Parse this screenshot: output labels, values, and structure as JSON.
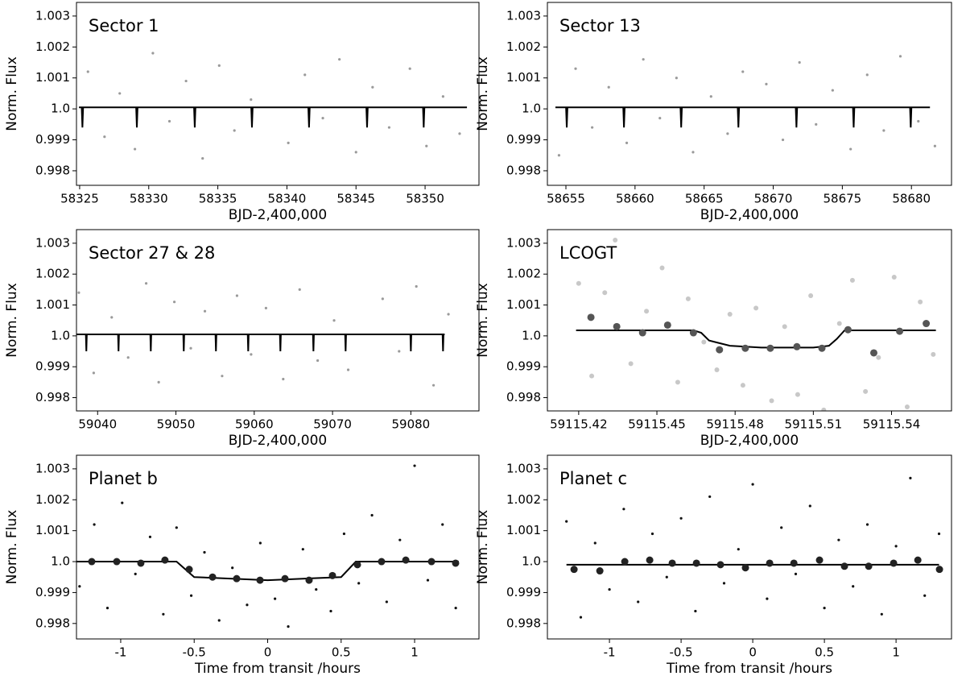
{
  "chart_data": [
    {
      "type": "scatter",
      "title": "Sector 1",
      "xlabel": "BJD-2,400,000",
      "ylabel": "Norm. Flux",
      "xlim": [
        58324.77,
        58353.9
      ],
      "xticks": [
        58325,
        58330,
        58335,
        58340,
        58345,
        58350
      ],
      "ylim": [
        0.99753,
        1.00344
      ],
      "yticks": [
        0.998,
        0.999,
        {
          "value": 1,
          "label": "1.0"
        },
        1.001,
        1.002,
        1.003
      ],
      "raw": {
        "color": "#9a9a9a",
        "x": [
          58325.6,
          58326.8,
          58327.9,
          58329.0,
          58330.3,
          58331.5,
          58332.7,
          58333.9,
          58335.1,
          58336.2,
          58337.4,
          58340.1,
          58341.3,
          58342.6,
          58343.8,
          58345.0,
          58346.2,
          58347.4,
          58348.9,
          58350.1,
          58351.3,
          58352.5
        ],
        "y": [
          1.0012,
          0.9991,
          1.0005,
          0.9987,
          1.0018,
          0.9996,
          1.0009,
          0.9984,
          1.0014,
          0.9993,
          1.0003,
          0.9989,
          1.0011,
          0.9997,
          1.0016,
          0.9986,
          1.0007,
          0.9994,
          1.0013,
          0.9988,
          1.0004,
          0.9992
        ]
      },
      "model": {
        "color": "#000000",
        "x": [
          58324.95,
          58325.15,
          58325.2,
          58325.25,
          58329.09,
          58329.14,
          58329.19,
          58333.28,
          58333.33,
          58333.38,
          58337.42,
          58337.47,
          58337.52,
          58341.55,
          58341.6,
          58341.65,
          58345.75,
          58345.8,
          58345.85,
          58349.85,
          58349.9,
          58349.95,
          58353.03
        ],
        "y": [
          1.00005,
          1.00005,
          0.9994,
          1.00005,
          1.00005,
          0.9994,
          1.00005,
          1.00005,
          0.9994,
          1.00005,
          1.00005,
          0.9994,
          1.00005,
          1.00005,
          0.9994,
          1.00005,
          1.00005,
          0.9994,
          1.00005,
          1.00005,
          0.9994,
          1.00005,
          1.00005
        ]
      }
    },
    {
      "type": "scatter",
      "title": "Sector 13",
      "xlabel": "BJD-2,400,000",
      "ylabel": "Norm. Flux",
      "xlim": [
        58653.66,
        58682.9
      ],
      "xticks": [
        58655,
        58660,
        58665,
        58670,
        58675,
        58680
      ],
      "ylim": [
        0.99753,
        1.00344
      ],
      "yticks": [
        0.998,
        0.999,
        {
          "value": 1,
          "label": "1.0"
        },
        1.001,
        1.002,
        1.003
      ],
      "raw": {
        "color": "#9a9a9a",
        "x": [
          58654.5,
          58655.7,
          58656.9,
          58658.1,
          58659.4,
          58660.6,
          58661.8,
          58663.0,
          58664.2,
          58665.5,
          58666.7,
          58667.8,
          58669.5,
          58670.7,
          58671.9,
          58673.1,
          58674.3,
          58675.6,
          58676.8,
          58678.0,
          58679.2,
          58680.5,
          58681.7
        ],
        "y": [
          0.9985,
          1.0013,
          0.9994,
          1.0007,
          0.9989,
          1.0016,
          0.9997,
          1.001,
          0.9986,
          1.0004,
          0.9992,
          1.0012,
          1.0008,
          0.999,
          1.0015,
          0.9995,
          1.0006,
          0.9987,
          1.0011,
          0.9993,
          1.0017,
          0.9996,
          0.9988
        ]
      },
      "model": {
        "color": "#000000",
        "x": [
          58654.24,
          58655.01,
          58655.06,
          58655.11,
          58659.15,
          58659.2,
          58659.25,
          58663.29,
          58663.34,
          58663.39,
          58667.43,
          58667.48,
          58667.53,
          58671.63,
          58671.68,
          58671.73,
          58675.77,
          58675.82,
          58675.87,
          58679.9,
          58679.95,
          58680.0,
          58681.34
        ],
        "y": [
          1.00005,
          1.00005,
          0.9994,
          1.00005,
          1.00005,
          0.9994,
          1.00005,
          1.00005,
          0.9994,
          1.00005,
          1.00005,
          0.9994,
          1.00005,
          1.00005,
          0.9994,
          1.00005,
          1.00005,
          0.9994,
          1.00005,
          1.00005,
          0.9994,
          1.00005,
          1.00005
        ]
      }
    },
    {
      "type": "scatter",
      "title": "Sector 27 & 28",
      "xlabel": "BJD-2,400,000",
      "ylabel": "Norm. Flux",
      "xlim": [
        59037.3,
        59088.7
      ],
      "xticks": [
        59040,
        59050,
        59060,
        59070,
        59080
      ],
      "ylim": [
        0.99757,
        1.00344
      ],
      "yticks": [
        0.998,
        0.999,
        {
          "value": 1,
          "label": "1.0"
        },
        1.001,
        1.002,
        1.003
      ],
      "raw": {
        "color": "#9a9a9a",
        "x": [
          59037.6,
          59039.5,
          59041.8,
          59043.9,
          59046.2,
          59047.8,
          59049.8,
          59051.9,
          59053.7,
          59055.9,
          59057.8,
          59059.6,
          59061.5,
          59063.7,
          59065.8,
          59068.1,
          59070.2,
          59072.0,
          59076.4,
          59078.5,
          59080.7,
          59082.9,
          59084.8
        ],
        "y": [
          1.0014,
          0.9988,
          1.0006,
          0.9993,
          1.0017,
          0.9985,
          1.0011,
          0.9996,
          1.0008,
          0.9987,
          1.0013,
          0.9994,
          1.0009,
          0.9986,
          1.0015,
          0.9992,
          1.0005,
          0.9989,
          1.0012,
          0.9995,
          1.0016,
          0.9984,
          1.0007
        ]
      },
      "model": {
        "color": "#000000",
        "x": [
          59037.33,
          59038.5,
          59038.56,
          59038.62,
          59042.61,
          59042.67,
          59042.73,
          59046.73,
          59046.79,
          59046.85,
          59050.94,
          59051.0,
          59051.06,
          59055.05,
          59055.11,
          59055.17,
          59059.17,
          59059.23,
          59059.29,
          59063.28,
          59063.34,
          59063.4,
          59067.5,
          59067.56,
          59067.62,
          59071.61,
          59071.67,
          59071.73,
          59079.94,
          59080.0,
          59080.06,
          59084.05,
          59084.11,
          59084.17,
          59084.32
        ],
        "y": [
          1.00005,
          1.00005,
          0.9995,
          1.00005,
          1.00005,
          0.9995,
          1.00005,
          1.00005,
          0.9995,
          1.00005,
          1.00005,
          0.9995,
          1.00005,
          1.00005,
          0.9995,
          1.00005,
          1.00005,
          0.9995,
          1.00005,
          1.00005,
          0.9995,
          1.00005,
          1.00005,
          0.9995,
          1.00005,
          1.00005,
          0.9995,
          1.00005,
          1.00005,
          0.9995,
          1.00005,
          1.00005,
          0.9995,
          1.00005,
          1.00005
        ]
      }
    },
    {
      "type": "scatter",
      "title": "LCOGT",
      "xlabel": "BJD-2,400,000",
      "ylabel": "Norm. Flux",
      "xlim": [
        59115.408,
        59115.563
      ],
      "xticks": [
        59115.42,
        59115.45,
        59115.48,
        59115.51,
        59115.54
      ],
      "ylim": [
        0.99757,
        1.00344
      ],
      "yticks": [
        0.998,
        0.999,
        {
          "value": 1,
          "label": "1.0"
        },
        1.001,
        1.002,
        1.003
      ],
      "raw": {
        "color": "#c8c8c8",
        "x": [
          59115.42,
          59115.425,
          59115.43,
          59115.434,
          59115.44,
          59115.446,
          59115.452,
          59115.458,
          59115.462,
          59115.468,
          59115.473,
          59115.478,
          59115.483,
          59115.488,
          59115.494,
          59115.499,
          59115.504,
          59115.509,
          59115.514,
          59115.52,
          59115.525,
          59115.53,
          59115.535,
          59115.541,
          59115.546,
          59115.551,
          59115.556
        ],
        "y": [
          1.0017,
          0.9987,
          1.0014,
          1.0031,
          0.9991,
          1.0008,
          1.0022,
          0.9985,
          1.0012,
          0.9998,
          0.9989,
          1.0007,
          0.9984,
          1.0009,
          0.9979,
          1.0003,
          0.9981,
          1.0013,
          0.9976,
          1.0004,
          1.0018,
          0.9982,
          0.9993,
          1.0019,
          0.9977,
          1.0011,
          0.9994
        ]
      },
      "binned": {
        "color": "#555555",
        "x": [
          59115.4247,
          59115.4346,
          59115.4445,
          59115.4541,
          59115.464,
          59115.474,
          59115.4839,
          59115.4935,
          59115.5037,
          59115.5133,
          59115.5233,
          59115.5332,
          59115.5431,
          59115.5533
        ],
        "y": [
          1.0006,
          1.0003,
          1.0001,
          1.00035,
          1.0001,
          0.99955,
          0.9996,
          0.9996,
          0.99965,
          0.9996,
          1.0002,
          0.99945,
          1.00015,
          1.0004
        ]
      },
      "model": {
        "color": "#000000",
        "x": [
          59115.419,
          59115.464,
          59115.467,
          59115.47,
          59115.478,
          59115.49,
          59115.51,
          59115.516,
          59115.519,
          59115.522,
          59115.557
        ],
        "y": [
          1.00018,
          1.00018,
          1.0001,
          0.99985,
          0.99968,
          0.99962,
          0.99962,
          0.99968,
          0.9999,
          1.00018,
          1.00018
        ]
      }
    },
    {
      "type": "scatter",
      "title": "Planet b",
      "xlabel": "Time from transit /hours",
      "ylabel": "Norm. Flux",
      "xlim": [
        -1.301,
        1.438
      ],
      "xticks": [
        -1,
        -0.5,
        0,
        0.5,
        1
      ],
      "ylim": [
        0.9975,
        1.00344
      ],
      "yticks": [
        0.998,
        0.999,
        {
          "value": 1,
          "label": "1.0"
        },
        1.001,
        1.002,
        1.003
      ],
      "raw": {
        "color": "#111111",
        "x": [
          -1.28,
          -1.18,
          -1.09,
          -0.99,
          -0.9,
          -0.8,
          -0.71,
          -0.62,
          -0.52,
          -0.43,
          -0.33,
          -0.24,
          -0.14,
          -0.05,
          0.05,
          0.14,
          0.24,
          0.33,
          0.43,
          0.52,
          0.62,
          0.71,
          0.81,
          0.9,
          1.0,
          1.09,
          1.19,
          1.28
        ],
        "y": [
          0.9992,
          1.0012,
          0.9985,
          1.0019,
          0.9996,
          1.0008,
          0.9983,
          1.0011,
          0.9989,
          1.0003,
          0.9981,
          0.9998,
          0.9986,
          1.0006,
          0.9988,
          0.9979,
          1.0004,
          0.9991,
          0.9984,
          1.0009,
          0.9993,
          1.0015,
          0.9987,
          1.0007,
          1.0031,
          0.9994,
          1.0012,
          0.9985
        ]
      },
      "binned": {
        "color": "#222222",
        "x": [
          -1.197,
          -1.027,
          -0.863,
          -0.699,
          -0.534,
          -0.375,
          -0.211,
          -0.052,
          0.118,
          0.282,
          0.441,
          0.611,
          0.775,
          0.94,
          1.115,
          1.279
        ],
        "y": [
          1.0,
          1.0,
          0.99995,
          1.00005,
          0.99975,
          0.9995,
          0.99945,
          0.9994,
          0.99945,
          0.9994,
          0.99955,
          0.9999,
          1.0,
          1.00005,
          1.0,
          0.99995
        ]
      },
      "model": {
        "color": "#000000",
        "x": [
          -1.3,
          -0.62,
          -0.5,
          0,
          0.5,
          0.6,
          1.3
        ],
        "y": [
          1.0,
          1.0,
          0.9995,
          0.9994,
          0.9995,
          1.0,
          1.0
        ]
      }
    },
    {
      "type": "scatter",
      "title": "Planet c",
      "xlabel": "Time from transit /hours",
      "ylabel": "Norm. Flux",
      "xlim": [
        -1.433,
        1.387
      ],
      "xticks": [
        -1,
        -0.5,
        0,
        0.5,
        1
      ],
      "ylim": [
        0.9975,
        1.00344
      ],
      "yticks": [
        0.998,
        0.999,
        {
          "value": 1,
          "label": "1.0"
        },
        1.001,
        1.002,
        1.003
      ],
      "raw": {
        "color": "#111111",
        "x": [
          -1.3,
          -1.2,
          -1.1,
          -1.0,
          -0.9,
          -0.8,
          -0.7,
          -0.6,
          -0.5,
          -0.4,
          -0.3,
          -0.2,
          -0.1,
          0.0,
          0.1,
          0.2,
          0.3,
          0.4,
          0.5,
          0.6,
          0.7,
          0.8,
          0.9,
          1.0,
          1.1,
          1.2,
          1.3
        ],
        "y": [
          1.0013,
          0.9982,
          1.0006,
          0.9991,
          1.0017,
          0.9987,
          1.0009,
          0.9995,
          1.0014,
          0.9984,
          1.0021,
          0.9993,
          1.0004,
          1.0025,
          0.9988,
          1.0011,
          0.9996,
          1.0018,
          0.9985,
          1.0007,
          0.9992,
          1.0012,
          0.9983,
          1.0005,
          1.0027,
          0.9989,
          1.0009
        ]
      },
      "binned": {
        "color": "#222222",
        "x": [
          -1.247,
          -1.067,
          -0.893,
          -0.719,
          -0.562,
          -0.393,
          -0.225,
          -0.051,
          0.118,
          0.287,
          0.466,
          0.64,
          0.809,
          0.983,
          1.152,
          1.303
        ],
        "y": [
          0.99975,
          0.9997,
          1.0,
          1.00005,
          0.99995,
          0.99995,
          0.9999,
          0.9998,
          0.99995,
          0.99995,
          1.00005,
          0.99985,
          0.99985,
          0.99995,
          1.00005,
          0.99975
        ]
      },
      "model": {
        "color": "#000000",
        "x": [
          -1.3,
          1.3
        ],
        "y": [
          0.9999,
          0.9999
        ]
      }
    }
  ]
}
